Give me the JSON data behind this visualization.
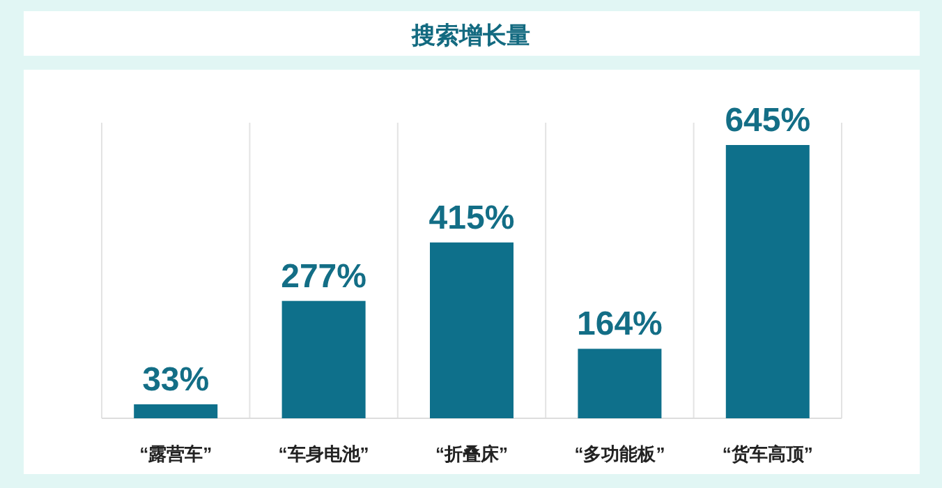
{
  "chart_data": {
    "type": "bar",
    "title": "搜索增长量",
    "categories": [
      "“露营车”",
      "“车身电池”",
      "“折叠床”",
      "“多功能板”",
      "“货车高顶”"
    ],
    "values": [
      33,
      277,
      415,
      164,
      645
    ],
    "value_labels": [
      "33%",
      "277%",
      "415%",
      "164%",
      "645%"
    ],
    "color": "#0e708b",
    "grid": "x"
  }
}
